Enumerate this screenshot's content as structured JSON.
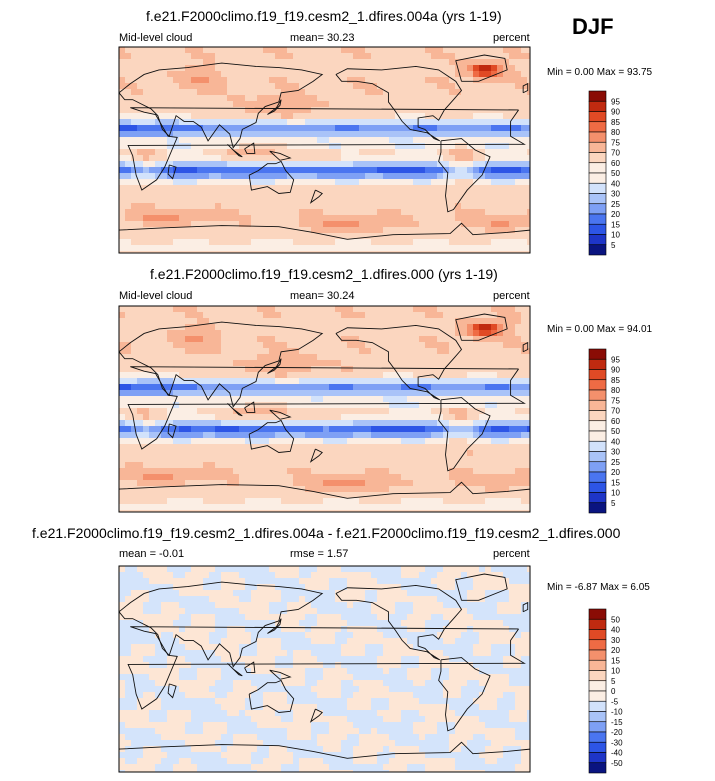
{
  "season": "DJF",
  "colors": {
    "full_scale": [
      "#0a1480",
      "#1e35c8",
      "#2d55e6",
      "#4a75f0",
      "#7ea0f5",
      "#a9c3f8",
      "#d2e2fb",
      "#fbeee4",
      "#fbd6bf",
      "#f8b697",
      "#f4906c",
      "#ef6b44",
      "#e04a25",
      "#c02a10",
      "#8a0c05"
    ],
    "diff_scale": [
      "#0a1480",
      "#1e35c8",
      "#2d55e6",
      "#4a75f0",
      "#7ea0f5",
      "#a9c3f8",
      "#d2e2fb",
      "#fbeee4",
      "#fbd6bf",
      "#f8b697",
      "#f4906c",
      "#ef6b44",
      "#e04a25",
      "#c02a10",
      "#8a0c05"
    ],
    "neg_fill": "#d4e4fb",
    "pos_fill": "#fde6d5",
    "coast": "#111111"
  },
  "chart_data": [
    {
      "type": "heatmap",
      "title": "f.e21.F2000climo.f19_f19.cesm2_1.dfires.004a (yrs 1-19)",
      "left_label": "Mid-level cloud",
      "mean_label": "mean=  30.23",
      "units": "percent",
      "min_max": "Min =   0.00 Max =  93.75",
      "mean": 30.23,
      "min": 0.0,
      "max": 93.75,
      "colorbar_ticks": [
        "95",
        "90",
        "85",
        "80",
        "75",
        "70",
        "60",
        "50",
        "40",
        "30",
        "25",
        "20",
        "15",
        "10",
        "5"
      ]
    },
    {
      "type": "heatmap",
      "title": "f.e21.F2000climo.f19_f19.cesm2_1.dfires.000 (yrs 1-19)",
      "left_label": "Mid-level cloud",
      "mean_label": "mean=  30.24",
      "units": "percent",
      "min_max": "Min =   0.00 Max =  94.01",
      "mean": 30.24,
      "min": 0.0,
      "max": 94.01,
      "colorbar_ticks": [
        "95",
        "90",
        "85",
        "80",
        "75",
        "70",
        "60",
        "50",
        "40",
        "30",
        "25",
        "20",
        "15",
        "10",
        "5"
      ]
    },
    {
      "type": "heatmap",
      "title": "f.e21.F2000climo.f19_f19.cesm2_1.dfires.004a - f.e21.F2000climo.f19_f19.cesm2_1.dfires.000",
      "left_label": "mean =  -0.01",
      "mean_label": "rmse =   1.57",
      "units": "percent",
      "min_max": "Min =  -6.87 Max =   6.05",
      "mean": -0.01,
      "rmse": 1.57,
      "min": -6.87,
      "max": 6.05,
      "colorbar_ticks": [
        "50",
        "40",
        "30",
        "20",
        "15",
        "10",
        "5",
        "0",
        "-5",
        "-10",
        "-15",
        "-20",
        "-30",
        "-40",
        "-50"
      ]
    }
  ]
}
